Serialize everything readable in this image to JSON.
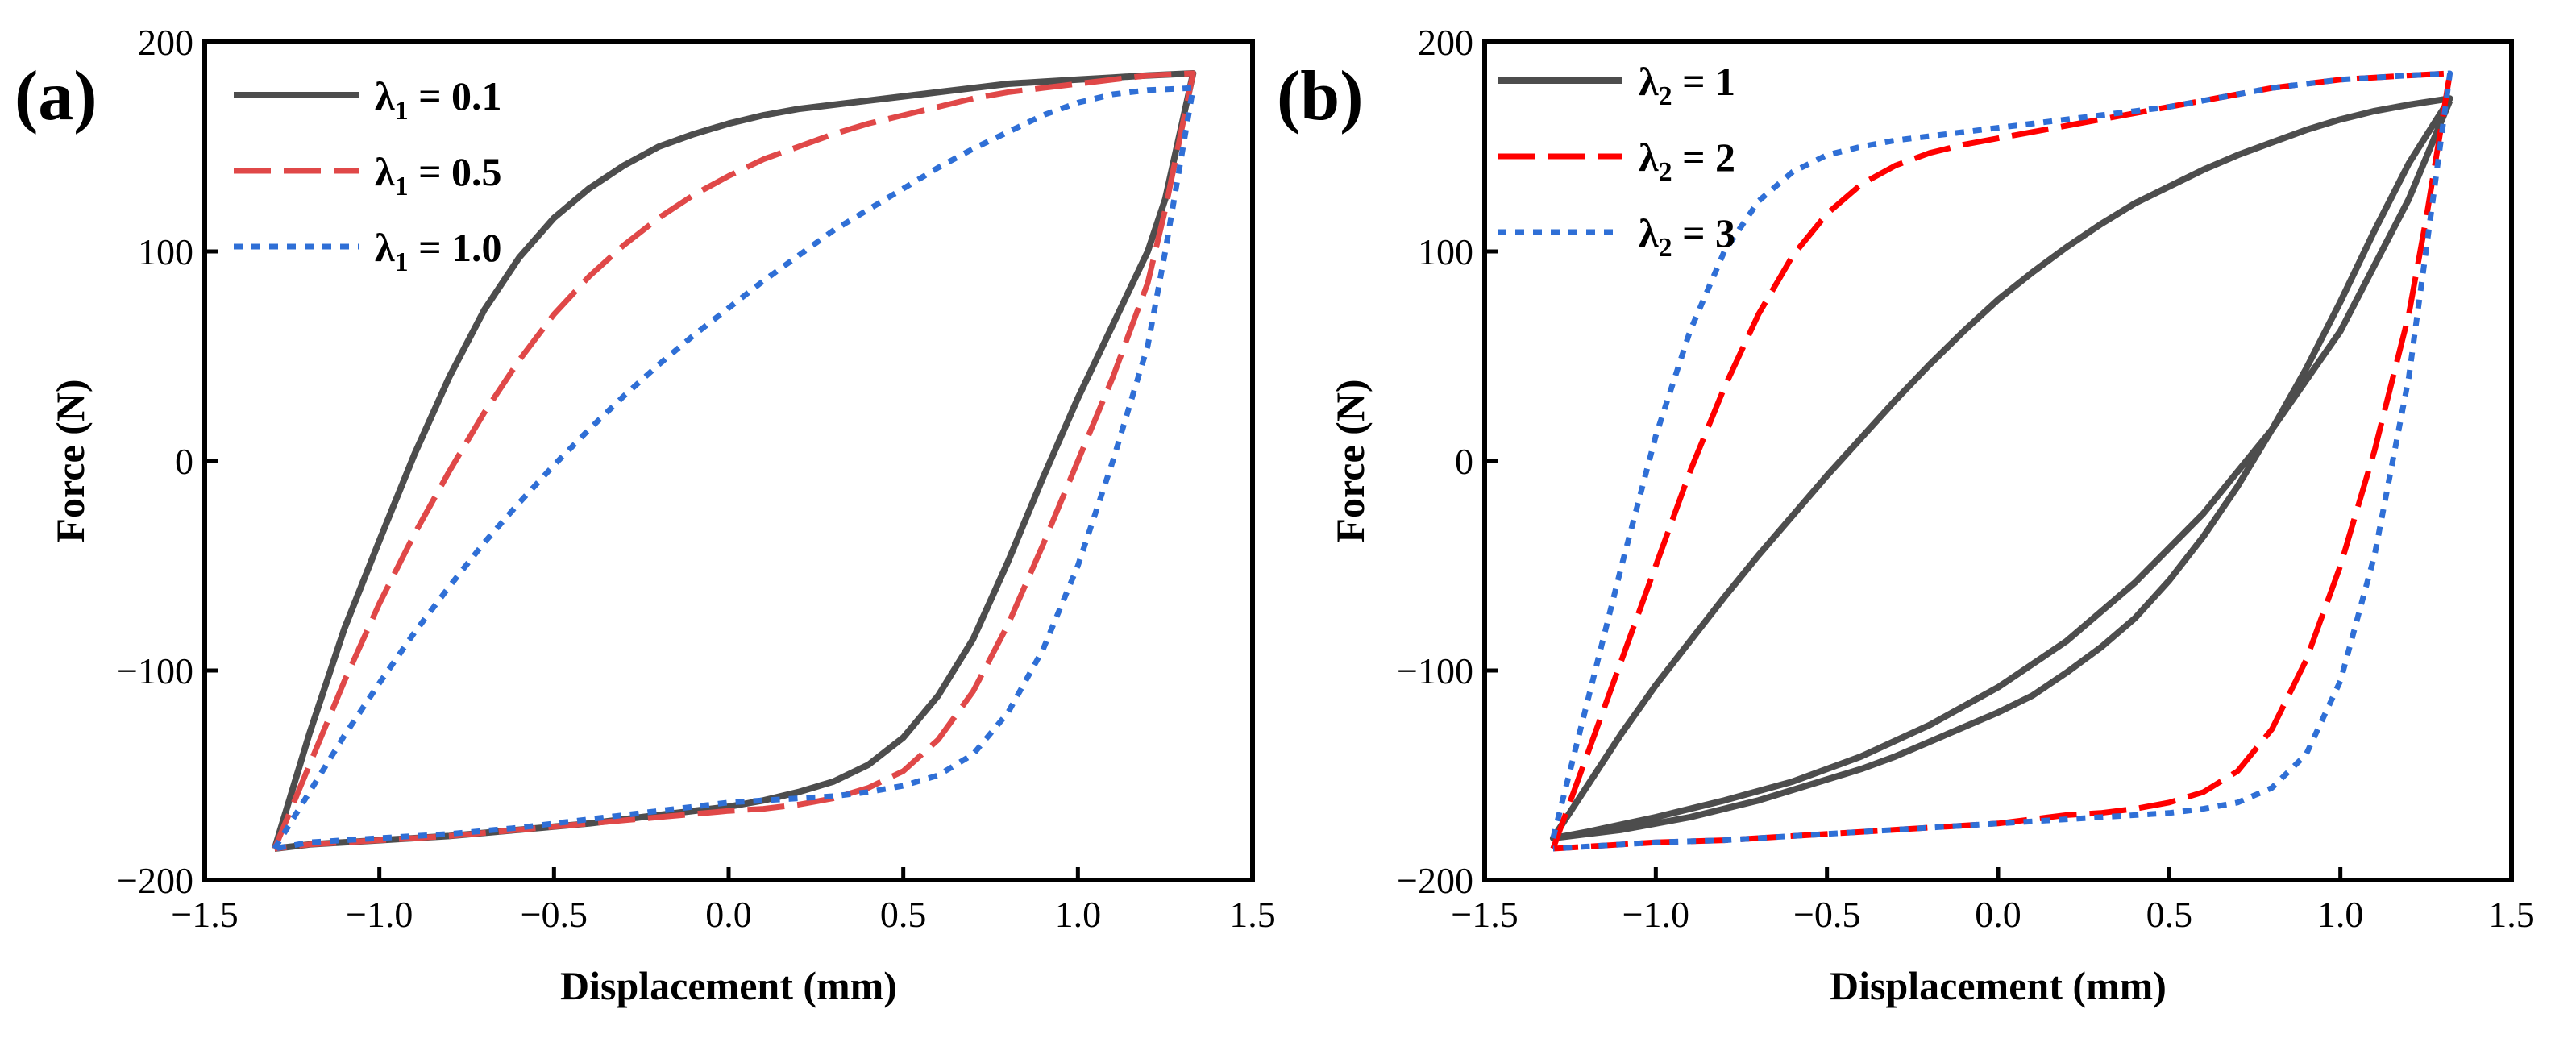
{
  "chart_data": [
    {
      "type": "line",
      "panel_label": "(a)",
      "xlabel": "Displacement (mm)",
      "ylabel": "Force (N)",
      "xlim": [
        -1.5,
        1.5
      ],
      "ylim": [
        -200,
        200
      ],
      "xticks": [
        -1.5,
        -1.0,
        -0.5,
        0.0,
        0.5,
        1.0,
        1.5
      ],
      "xtick_labels": [
        "−1.5",
        "−1.0",
        "−0.5",
        "0.0",
        "0.5",
        "1.0",
        "1.5"
      ],
      "yticks": [
        -200,
        -100,
        0,
        100,
        200
      ],
      "ytick_labels": [
        "−200",
        "−100",
        "0",
        "100",
        "200"
      ],
      "legend_position": "top-left",
      "series": [
        {
          "name": "λ1 = 0.1",
          "legend": {
            "symbol": "λ",
            "sub": "1",
            "rest": " = 0.1"
          },
          "color": "#4d4d4d",
          "style": "solid",
          "x": [
            -1.3,
            -1.2,
            -1.1,
            -1.0,
            -0.9,
            -0.8,
            -0.7,
            -0.6,
            -0.5,
            -0.4,
            -0.3,
            -0.2,
            -0.1,
            0.0,
            0.1,
            0.2,
            0.3,
            0.4,
            0.5,
            0.6,
            0.7,
            0.8,
            0.9,
            1.0,
            1.1,
            1.2,
            1.33,
            1.25,
            1.2,
            1.1,
            1.0,
            0.9,
            0.8,
            0.7,
            0.6,
            0.5,
            0.4,
            0.3,
            0.2,
            0.1,
            0.0,
            -0.2,
            -0.4,
            -0.6,
            -0.8,
            -1.0,
            -1.2,
            -1.3
          ],
          "y": [
            -185,
            -130,
            -80,
            -38,
            3,
            40,
            72,
            97,
            116,
            130,
            141,
            150,
            156,
            161,
            165,
            168,
            170,
            172,
            174,
            176,
            178,
            180,
            181,
            182,
            183,
            184,
            185,
            125,
            100,
            65,
            30,
            -8,
            -48,
            -85,
            -112,
            -132,
            -145,
            -153,
            -158,
            -162,
            -165,
            -169,
            -173,
            -176,
            -179,
            -181,
            -183,
            -185
          ]
        },
        {
          "name": "λ1 = 0.5",
          "legend": {
            "symbol": "λ",
            "sub": "1",
            "rest": " = 0.5"
          },
          "color": "#e04848",
          "style": "dashed",
          "x": [
            -1.3,
            -1.2,
            -1.1,
            -1.0,
            -0.9,
            -0.8,
            -0.7,
            -0.6,
            -0.5,
            -0.4,
            -0.3,
            -0.2,
            -0.1,
            0.0,
            0.1,
            0.2,
            0.3,
            0.4,
            0.5,
            0.6,
            0.7,
            0.8,
            0.9,
            1.0,
            1.1,
            1.2,
            1.33,
            1.25,
            1.2,
            1.1,
            1.0,
            0.9,
            0.8,
            0.7,
            0.6,
            0.5,
            0.4,
            0.3,
            0.2,
            0.1,
            0.0,
            -0.2,
            -0.4,
            -0.6,
            -0.8,
            -1.0,
            -1.2,
            -1.3
          ],
          "y": [
            -185,
            -145,
            -105,
            -68,
            -35,
            -5,
            23,
            48,
            70,
            88,
            103,
            116,
            127,
            136,
            144,
            150,
            156,
            161,
            165,
            169,
            173,
            176,
            178,
            180,
            182,
            184,
            185,
            120,
            85,
            40,
            0,
            -40,
            -78,
            -110,
            -133,
            -148,
            -156,
            -161,
            -164,
            -166,
            -167,
            -170,
            -173,
            -176,
            -179,
            -181,
            -183,
            -185
          ]
        },
        {
          "name": "λ1 = 1.0",
          "legend": {
            "symbol": "λ",
            "sub": "1",
            "rest": " = 1.0"
          },
          "color": "#2f6fd6",
          "style": "dotted",
          "x": [
            -1.3,
            -1.2,
            -1.1,
            -1.0,
            -0.9,
            -0.8,
            -0.7,
            -0.6,
            -0.5,
            -0.4,
            -0.3,
            -0.2,
            -0.1,
            0.0,
            0.1,
            0.2,
            0.3,
            0.4,
            0.5,
            0.6,
            0.7,
            0.8,
            0.9,
            1.0,
            1.1,
            1.2,
            1.33,
            1.25,
            1.2,
            1.1,
            1.0,
            0.9,
            0.8,
            0.7,
            0.6,
            0.5,
            0.4,
            0.3,
            0.2,
            0.1,
            0.0,
            -0.2,
            -0.4,
            -0.6,
            -0.8,
            -1.0,
            -1.2,
            -1.3
          ],
          "y": [
            -185,
            -158,
            -131,
            -106,
            -82,
            -60,
            -39,
            -20,
            -2,
            15,
            31,
            46,
            60,
            73,
            86,
            98,
            110,
            120,
            130,
            140,
            149,
            157,
            165,
            171,
            175,
            177,
            178,
            100,
            55,
            0,
            -50,
            -90,
            -120,
            -140,
            -150,
            -155,
            -158,
            -160,
            -161,
            -162,
            -163,
            -167,
            -171,
            -175,
            -178,
            -180,
            -182,
            -185
          ]
        }
      ]
    },
    {
      "type": "line",
      "panel_label": "(b)",
      "xlabel": "Displacement (mm)",
      "ylabel": "Force (N)",
      "xlim": [
        -1.5,
        1.5
      ],
      "ylim": [
        -200,
        200
      ],
      "xticks": [
        -1.5,
        -1.0,
        -0.5,
        0.0,
        0.5,
        1.0,
        1.5
      ],
      "xtick_labels": [
        "−1.5",
        "−1.0",
        "−0.5",
        "0.0",
        "0.5",
        "1.0",
        "1.5"
      ],
      "yticks": [
        -200,
        -100,
        0,
        100,
        200
      ],
      "ytick_labels": [
        "−200",
        "−100",
        "0",
        "100",
        "200"
      ],
      "legend_position": "top-left",
      "series": [
        {
          "name": "λ2 = 1",
          "legend": {
            "symbol": "λ",
            "sub": "2",
            "rest": " = 1"
          },
          "color": "#4d4d4d",
          "style": "solid",
          "x": [
            -1.3,
            -1.2,
            -1.1,
            -1.0,
            -0.9,
            -0.8,
            -0.7,
            -0.6,
            -0.5,
            -0.4,
            -0.3,
            -0.2,
            -0.1,
            0.0,
            0.1,
            0.2,
            0.3,
            0.4,
            0.5,
            0.6,
            0.7,
            0.8,
            0.9,
            1.0,
            1.1,
            1.2,
            1.32,
            1.25,
            1.2,
            1.1,
            1.0,
            0.9,
            0.8,
            0.7,
            0.6,
            0.5,
            0.4,
            0.3,
            0.2,
            0.1,
            0.0,
            -0.1,
            -0.2,
            -0.3,
            -0.4,
            -0.5,
            -0.6,
            -0.7,
            -0.8,
            -0.9,
            -1.0,
            -1.1,
            -1.2,
            -1.3,
            -1.2,
            -1.0,
            -0.8,
            -0.6,
            -0.4,
            -0.2,
            0.0,
            0.2,
            0.4,
            0.6,
            0.8,
            1.0,
            1.2,
            1.32
          ],
          "y": [
            -180,
            -155,
            -130,
            -107,
            -86,
            -65,
            -45,
            -26,
            -7,
            11,
            29,
            46,
            62,
            77,
            90,
            102,
            113,
            123,
            131,
            139,
            146,
            152,
            158,
            163,
            167,
            170,
            173,
            155,
            142,
            110,
            76,
            44,
            15,
            -12,
            -36,
            -57,
            -75,
            -89,
            -101,
            -112,
            -120,
            -127,
            -134,
            -141,
            -147,
            -152,
            -157,
            -162,
            -166,
            -170,
            -173,
            -176,
            -178,
            -180,
            -177,
            -170,
            -162,
            -153,
            -141,
            -126,
            -108,
            -86,
            -58,
            -25,
            15,
            62,
            125,
            172
          ]
        },
        {
          "name": "λ2 = 2",
          "legend": {
            "symbol": "λ",
            "sub": "2",
            "rest": " = 2"
          },
          "color": "#ff0000",
          "style": "dashed",
          "x": [
            -1.3,
            -1.2,
            -1.1,
            -1.0,
            -0.9,
            -0.8,
            -0.7,
            -0.6,
            -0.5,
            -0.4,
            -0.3,
            -0.2,
            -0.1,
            0.0,
            0.1,
            0.2,
            0.3,
            0.4,
            0.5,
            0.6,
            0.7,
            0.8,
            0.9,
            1.0,
            1.1,
            1.2,
            1.32,
            1.25,
            1.2,
            1.1,
            1.0,
            0.9,
            0.8,
            0.7,
            0.6,
            0.5,
            0.4,
            0.3,
            0.2,
            0.1,
            0.0,
            -0.2,
            -0.4,
            -0.6,
            -0.8,
            -1.0,
            -1.2,
            -1.3
          ],
          "y": [
            -185,
            -140,
            -95,
            -50,
            -5,
            35,
            70,
            98,
            118,
            132,
            141,
            147,
            151,
            154,
            157,
            160,
            163,
            166,
            169,
            172,
            175,
            178,
            180,
            182,
            183,
            184,
            185,
            115,
            70,
            5,
            -50,
            -95,
            -128,
            -148,
            -158,
            -163,
            -166,
            -168,
            -169,
            -171,
            -173,
            -175,
            -177,
            -179,
            -181,
            -182,
            -184,
            -185
          ]
        },
        {
          "name": "λ2 = 3",
          "legend": {
            "symbol": "λ",
            "sub": "2",
            "rest": " = 3"
          },
          "color": "#2f6fd6",
          "style": "dotted",
          "x": [
            -1.3,
            -1.2,
            -1.1,
            -1.0,
            -0.9,
            -0.8,
            -0.7,
            -0.6,
            -0.5,
            -0.4,
            -0.3,
            -0.2,
            -0.1,
            0.0,
            0.1,
            0.2,
            0.3,
            0.4,
            0.5,
            0.6,
            0.7,
            0.8,
            0.9,
            1.0,
            1.1,
            1.2,
            1.32,
            1.25,
            1.2,
            1.1,
            1.0,
            0.9,
            0.8,
            0.7,
            0.6,
            0.5,
            0.4,
            0.3,
            0.2,
            0.1,
            0.0,
            -0.2,
            -0.4,
            -0.6,
            -0.8,
            -1.0,
            -1.2,
            -1.3
          ],
          "y": [
            -180,
            -115,
            -50,
            12,
            62,
            100,
            124,
            138,
            146,
            150,
            153,
            155,
            157,
            159,
            161,
            163,
            165,
            167,
            169,
            172,
            175,
            178,
            180,
            182,
            183,
            184,
            185,
            100,
            40,
            -45,
            -105,
            -140,
            -156,
            -163,
            -166,
            -168,
            -169,
            -170,
            -171,
            -172,
            -173,
            -175,
            -177,
            -179,
            -181,
            -182,
            -184,
            -185
          ]
        }
      ]
    }
  ]
}
